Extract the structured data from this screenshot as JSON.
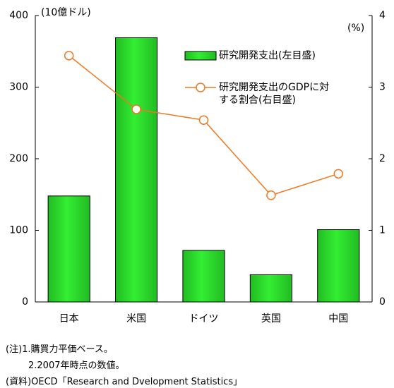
{
  "chart_data": {
    "type": "bar",
    "y_unit": "(10億ドル)",
    "y2_unit": "(%)",
    "categories": [
      "日本",
      "米国",
      "ドイツ",
      "英国",
      "中国"
    ],
    "series": [
      {
        "name": "研究開発支出(左目盛)",
        "type": "bar",
        "color": "#33ee33",
        "values": [
          148,
          369,
          72,
          38,
          101
        ]
      },
      {
        "name": "研究開発支出のGDPに対する割合(右目盛)",
        "type": "line",
        "axis": "y2",
        "color": "#f07820",
        "values": [
          3.44,
          2.69,
          2.54,
          1.49,
          1.79
        ]
      }
    ],
    "ylim": [
      0,
      400
    ],
    "yticks": [
      0,
      100,
      200,
      300,
      400
    ],
    "y2lim": [
      0,
      4
    ],
    "y2ticks": [
      0,
      1,
      2,
      3,
      4
    ],
    "notes": [
      "(注)1.購買力平価ベース。",
      "2.2007年時点の数値。",
      "(資料)OECD「Research and Dvelopment Statistics」"
    ]
  }
}
